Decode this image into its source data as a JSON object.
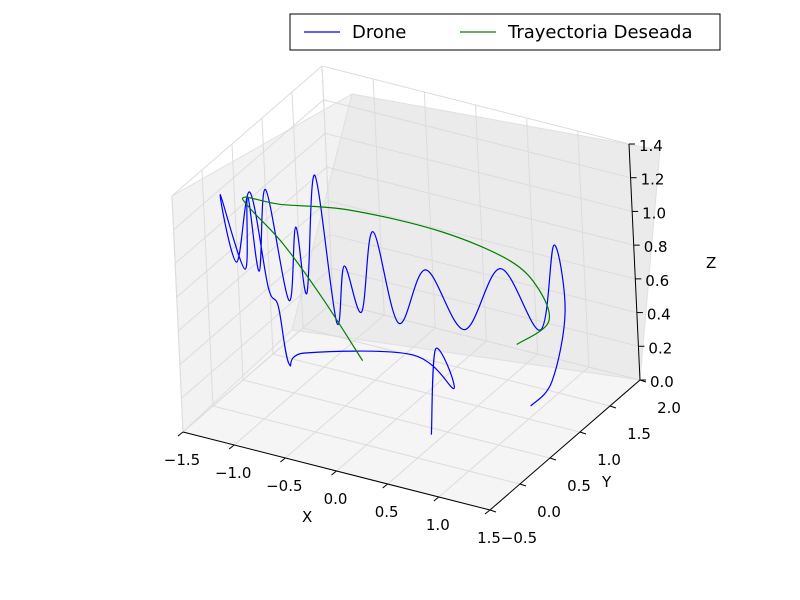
{
  "chart_data": {
    "type": "line",
    "projection": "3d",
    "title": "",
    "xlabel": "X",
    "ylabel": "Y",
    "zlabel": "Z",
    "xlim": [
      -1.5,
      1.5
    ],
    "ylim": [
      -0.5,
      2.0
    ],
    "zlim": [
      0.0,
      1.4
    ],
    "x_ticks": [
      "−1.5",
      "−1.0",
      "−0.5",
      "0.0",
      "0.5",
      "1.0",
      "1.5"
    ],
    "y_ticks": [
      "−0.5",
      "0.0",
      "0.5",
      "1.0",
      "1.5",
      "2.0"
    ],
    "z_ticks": [
      "0.0",
      "0.2",
      "0.4",
      "0.6",
      "0.8",
      "1.0",
      "1.2",
      "1.4"
    ],
    "grid": true,
    "legend": {
      "placement": "top-right",
      "columns": 2
    },
    "series": [
      {
        "name": "Drone",
        "color": "#0000ff",
        "points": [
          [
            0.4,
            0.4,
            0.0
          ],
          [
            0.45,
            0.45,
            0.5
          ],
          [
            0.55,
            0.55,
            0.25
          ],
          [
            0.25,
            0.4,
            0.45
          ],
          [
            -0.35,
            -0.35,
            0.6
          ],
          [
            -0.45,
            -0.45,
            0.55
          ],
          [
            -0.5,
            -0.5,
            0.9
          ],
          [
            -0.9,
            0.0,
            0.8
          ],
          [
            -1.1,
            0.1,
            1.3
          ],
          [
            -1.2,
            0.0,
            0.9
          ],
          [
            -1.3,
            -0.05,
            1.3
          ],
          [
            -1.15,
            0.05,
            0.85
          ],
          [
            -1.0,
            -0.1,
            1.35
          ],
          [
            -0.95,
            -0.05,
            0.9
          ],
          [
            -0.85,
            -0.05,
            1.4
          ],
          [
            -0.7,
            0.0,
            0.75
          ],
          [
            -0.6,
            0.0,
            1.2
          ],
          [
            -0.55,
            0.05,
            0.8
          ],
          [
            -0.45,
            0.1,
            1.5
          ],
          [
            -0.3,
            0.1,
            0.65
          ],
          [
            -0.2,
            0.1,
            1.0
          ],
          [
            -0.05,
            0.1,
            0.75
          ],
          [
            0.1,
            0.1,
            1.25
          ],
          [
            0.25,
            0.2,
            0.7
          ],
          [
            0.45,
            0.35,
            1.0
          ],
          [
            0.65,
            0.6,
            0.6
          ],
          [
            0.85,
            0.9,
            0.9
          ],
          [
            1.0,
            1.25,
            0.45
          ],
          [
            1.05,
            1.45,
            0.9
          ],
          [
            1.1,
            1.5,
            0.5
          ],
          [
            1.0,
            1.4,
            0.1
          ],
          [
            0.9,
            1.2,
            0.0
          ]
        ]
      },
      {
        "name": "Trayectoria Deseada",
        "color": "#008000",
        "points": [
          [
            0.0,
            0.0,
            0.5
          ],
          [
            -0.3,
            -0.1,
            0.85
          ],
          [
            -0.7,
            -0.05,
            1.1
          ],
          [
            -1.1,
            0.1,
            1.2
          ],
          [
            -1.4,
            0.5,
            1.1
          ],
          [
            -1.3,
            0.9,
            0.95
          ],
          [
            -0.8,
            1.2,
            0.9
          ],
          [
            0.0,
            1.35,
            0.85
          ],
          [
            0.7,
            1.3,
            0.8
          ],
          [
            1.1,
            1.1,
            0.75
          ],
          [
            1.3,
            0.9,
            0.65
          ],
          [
            1.1,
            0.7,
            0.55
          ]
        ]
      }
    ]
  }
}
